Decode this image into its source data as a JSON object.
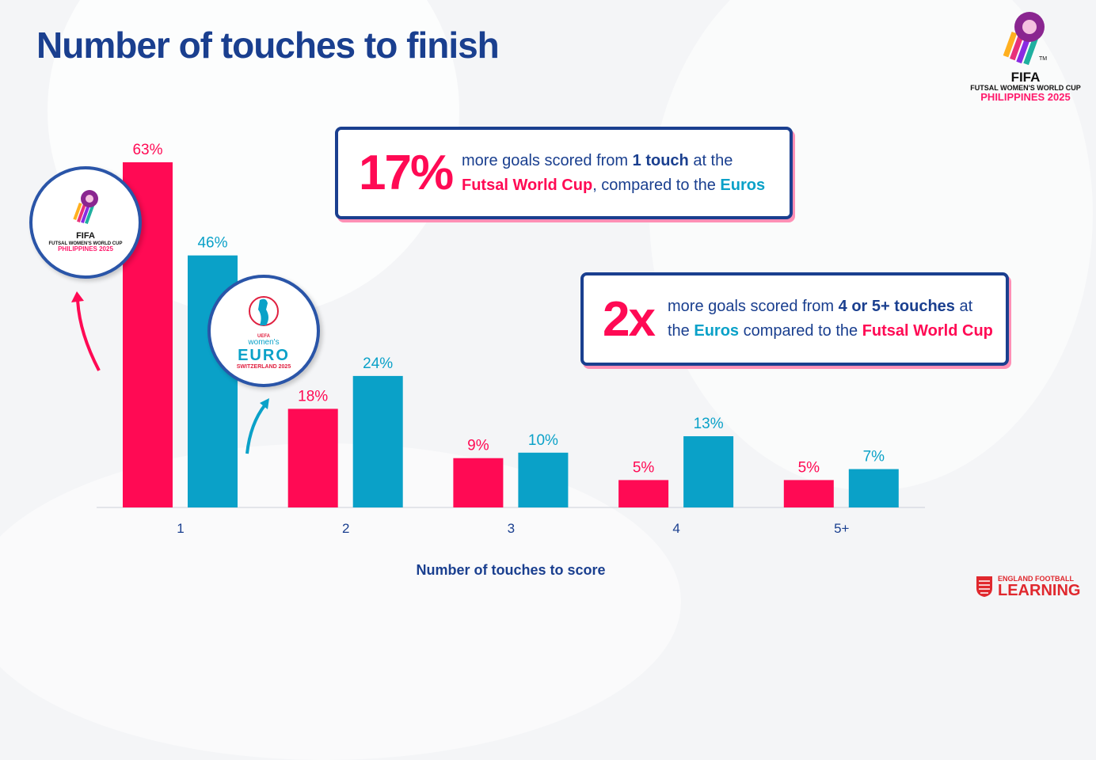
{
  "title": "Number of touches to finish",
  "fifa_logo": {
    "line1": "FIFA",
    "line2": "FUTSAL WOMEN'S WORLD CUP",
    "line3": "PHILIPPINES 2025",
    "tm": "TM"
  },
  "euro_logo": {
    "line1": "UEFA",
    "line2": "women's",
    "line3": "EURO",
    "line4": "SWITZERLAND 2025"
  },
  "callout1": {
    "big": "17%",
    "t1": "more goals scored from ",
    "t1b": "1 touch",
    "t1c": " at the",
    "t2a": "Futsal World Cup",
    "t2b": ", compared to the ",
    "t2c": "Euros"
  },
  "callout2": {
    "big": "2x",
    "t1": "more goals scored from ",
    "t1b": "4 or 5+ touches",
    "t1c": " at",
    "t2a": "the ",
    "t2b": "Euros",
    "t2c": " compared to the ",
    "t2d": "Futsal World Cup"
  },
  "footer": {
    "line1": "ENGLAND FOOTBALL",
    "line2": "LEARNING"
  },
  "colors": {
    "fwc": "#ff0a54",
    "euros": "#0aa1c8",
    "navy": "#1a3f8f"
  },
  "chart_data": {
    "type": "bar",
    "title": "Number of touches to finish",
    "xlabel": "Number of touches to score",
    "ylabel": "",
    "categories": [
      "1",
      "2",
      "3",
      "4",
      "5+"
    ],
    "series": [
      {
        "name": "Futsal Women's World Cup Philippines 2025",
        "values": [
          63,
          18,
          9,
          5,
          5
        ],
        "labels": [
          "63%",
          "18%",
          "9%",
          "5%",
          "5%"
        ]
      },
      {
        "name": "UEFA Women's Euro Switzerland 2025",
        "values": [
          46,
          24,
          10,
          13,
          7
        ],
        "labels": [
          "46%",
          "24%",
          "10%",
          "13%",
          "7%"
        ]
      }
    ],
    "ylim": [
      0,
      63
    ],
    "grid": false
  }
}
